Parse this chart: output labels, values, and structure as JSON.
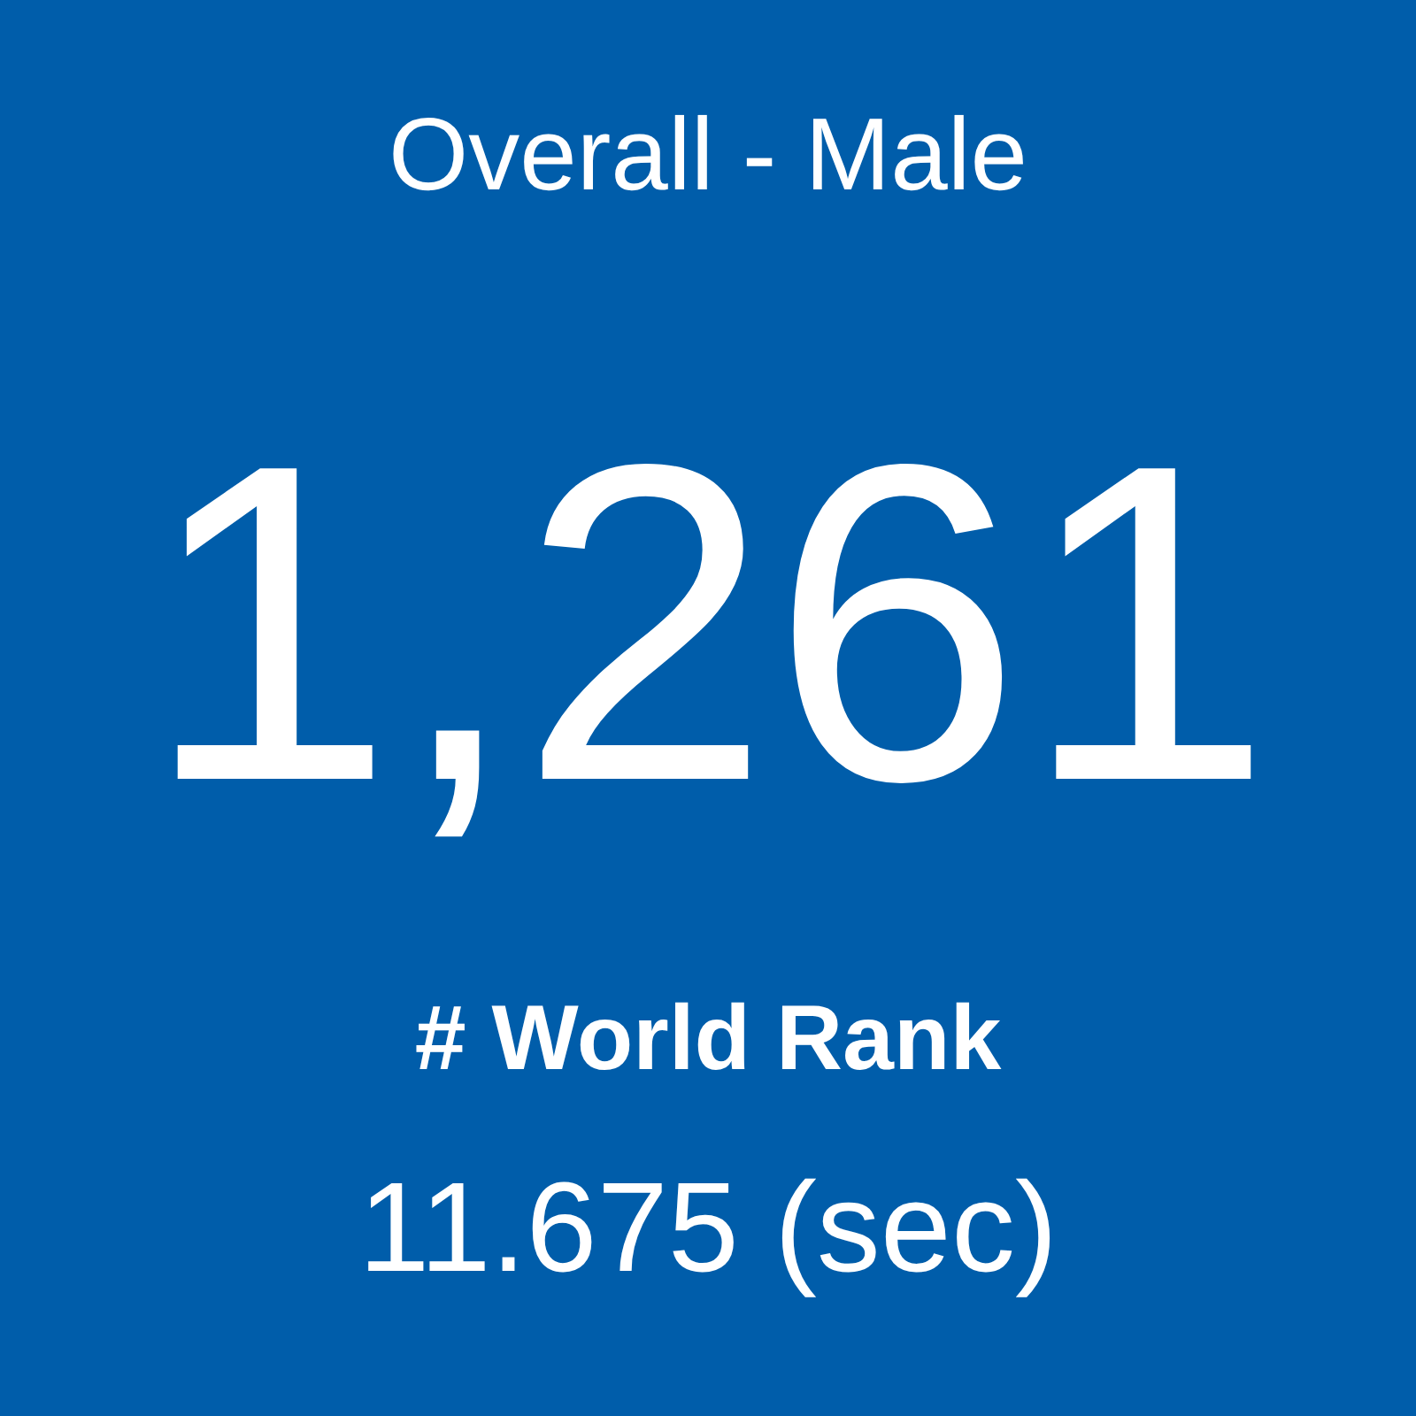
{
  "chart_data": {
    "type": "other",
    "title": "Overall - Male",
    "categories": [
      "# World Rank"
    ],
    "values": [
      1261
    ],
    "value_labels": [
      "1,261"
    ],
    "annotations": [
      "11.675 (sec)"
    ]
  }
}
